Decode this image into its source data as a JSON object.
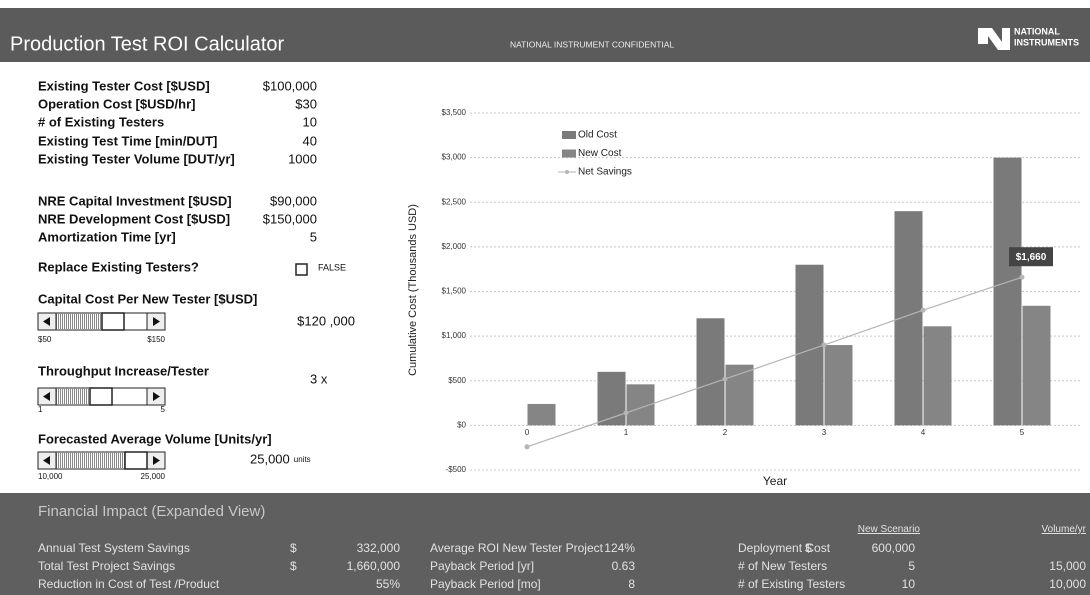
{
  "header": {
    "title": "Production Test ROI Calculator",
    "confidential": "NATIONAL INSTRUMENT CONFIDENTIAL",
    "logo": [
      "NATIONAL",
      "INSTRUMENTS"
    ]
  },
  "inputs": {
    "group1": [
      [
        "Existing Tester Cost [$USD]",
        "$100,000"
      ],
      [
        "Operation Cost [$USD/hr]",
        "$30"
      ],
      [
        "# of Existing Testers",
        "10"
      ],
      [
        "Existing Test Time [min/DUT]",
        "40"
      ],
      [
        "Existing Tester Volume [DUT/yr]",
        "1000"
      ]
    ],
    "group2": [
      [
        "NRE Capital Investment [$USD]",
        "$90,000"
      ],
      [
        "NRE Development Cost [$USD]",
        "$150,000"
      ],
      [
        "Amortization Time [yr]",
        "5"
      ]
    ],
    "replace": {
      "label": "Replace Existing Testers?",
      "value": "FALSE"
    },
    "sliders": [
      {
        "label": "Capital Cost Per New Tester [$USD]",
        "min": "$50",
        "max": "$150",
        "value": "$120 ,000"
      },
      {
        "label": "Throughput Increase/Tester",
        "min": "1",
        "max": "5",
        "value": "3 x"
      },
      {
        "label": "Forecasted Average Volume [Units/yr]",
        "min": "10,000",
        "max": "25,000",
        "value": "25,000",
        "unit": "units"
      }
    ]
  },
  "chart_data": {
    "type": "bar",
    "x_label": "Year",
    "y_label": "Cumulative Cost (Thousands USD)",
    "categories": [
      "0",
      "1",
      "2",
      "3",
      "4",
      "5"
    ],
    "series": [
      {
        "name": "Old Cost",
        "color": "#7a7a7a",
        "values": [
          0,
          600,
          1200,
          1800,
          2400,
          3000
        ]
      },
      {
        "name": "New Cost",
        "color": "#858585",
        "values": [
          240,
          460,
          680,
          900,
          1110,
          1340
        ]
      },
      {
        "name": "Net Savings",
        "type": "line",
        "color": "#b5b5b5",
        "values": [
          -240,
          140,
          520,
          900,
          1290,
          1660
        ],
        "value_labels": [
          null,
          null,
          null,
          null,
          null,
          "$1,660"
        ]
      }
    ],
    "ylim": [
      -500,
      3500
    ],
    "yticks": [
      {
        "value": -500,
        "label": "-$500"
      },
      {
        "value": 0,
        "label": "$0"
      },
      {
        "value": 500,
        "label": "$500"
      },
      {
        "value": 1000,
        "label": "$1,000"
      },
      {
        "value": 1500,
        "label": "$1,500"
      },
      {
        "value": 2000,
        "label": "$2,000"
      },
      {
        "value": 2500,
        "label": "$2,500"
      },
      {
        "value": 3000,
        "label": "$3,000"
      },
      {
        "value": 3500,
        "label": "$3,500"
      }
    ],
    "grid": true
  },
  "impact": {
    "title": "Financial Impact (Expanded View)",
    "headers": [
      "New Scenario",
      "Volume/yr"
    ],
    "rows": [
      [
        "Annual Test System Savings",
        "$ 332,000",
        "Average ROI New Tester Project",
        "124%",
        "Deployment Cost",
        "$ 600,000"
      ],
      [
        "Total Test Project Savings",
        "$ 1,660,000",
        "Payback Period [yr]",
        "0.63",
        "# of New Testers",
        "5",
        "15,000"
      ],
      [
        "Reduction in Cost of Test /Product",
        "55%",
        "Payback Period [mo]",
        "8",
        "# of Existing Testers",
        "10",
        "10,000"
      ]
    ]
  }
}
